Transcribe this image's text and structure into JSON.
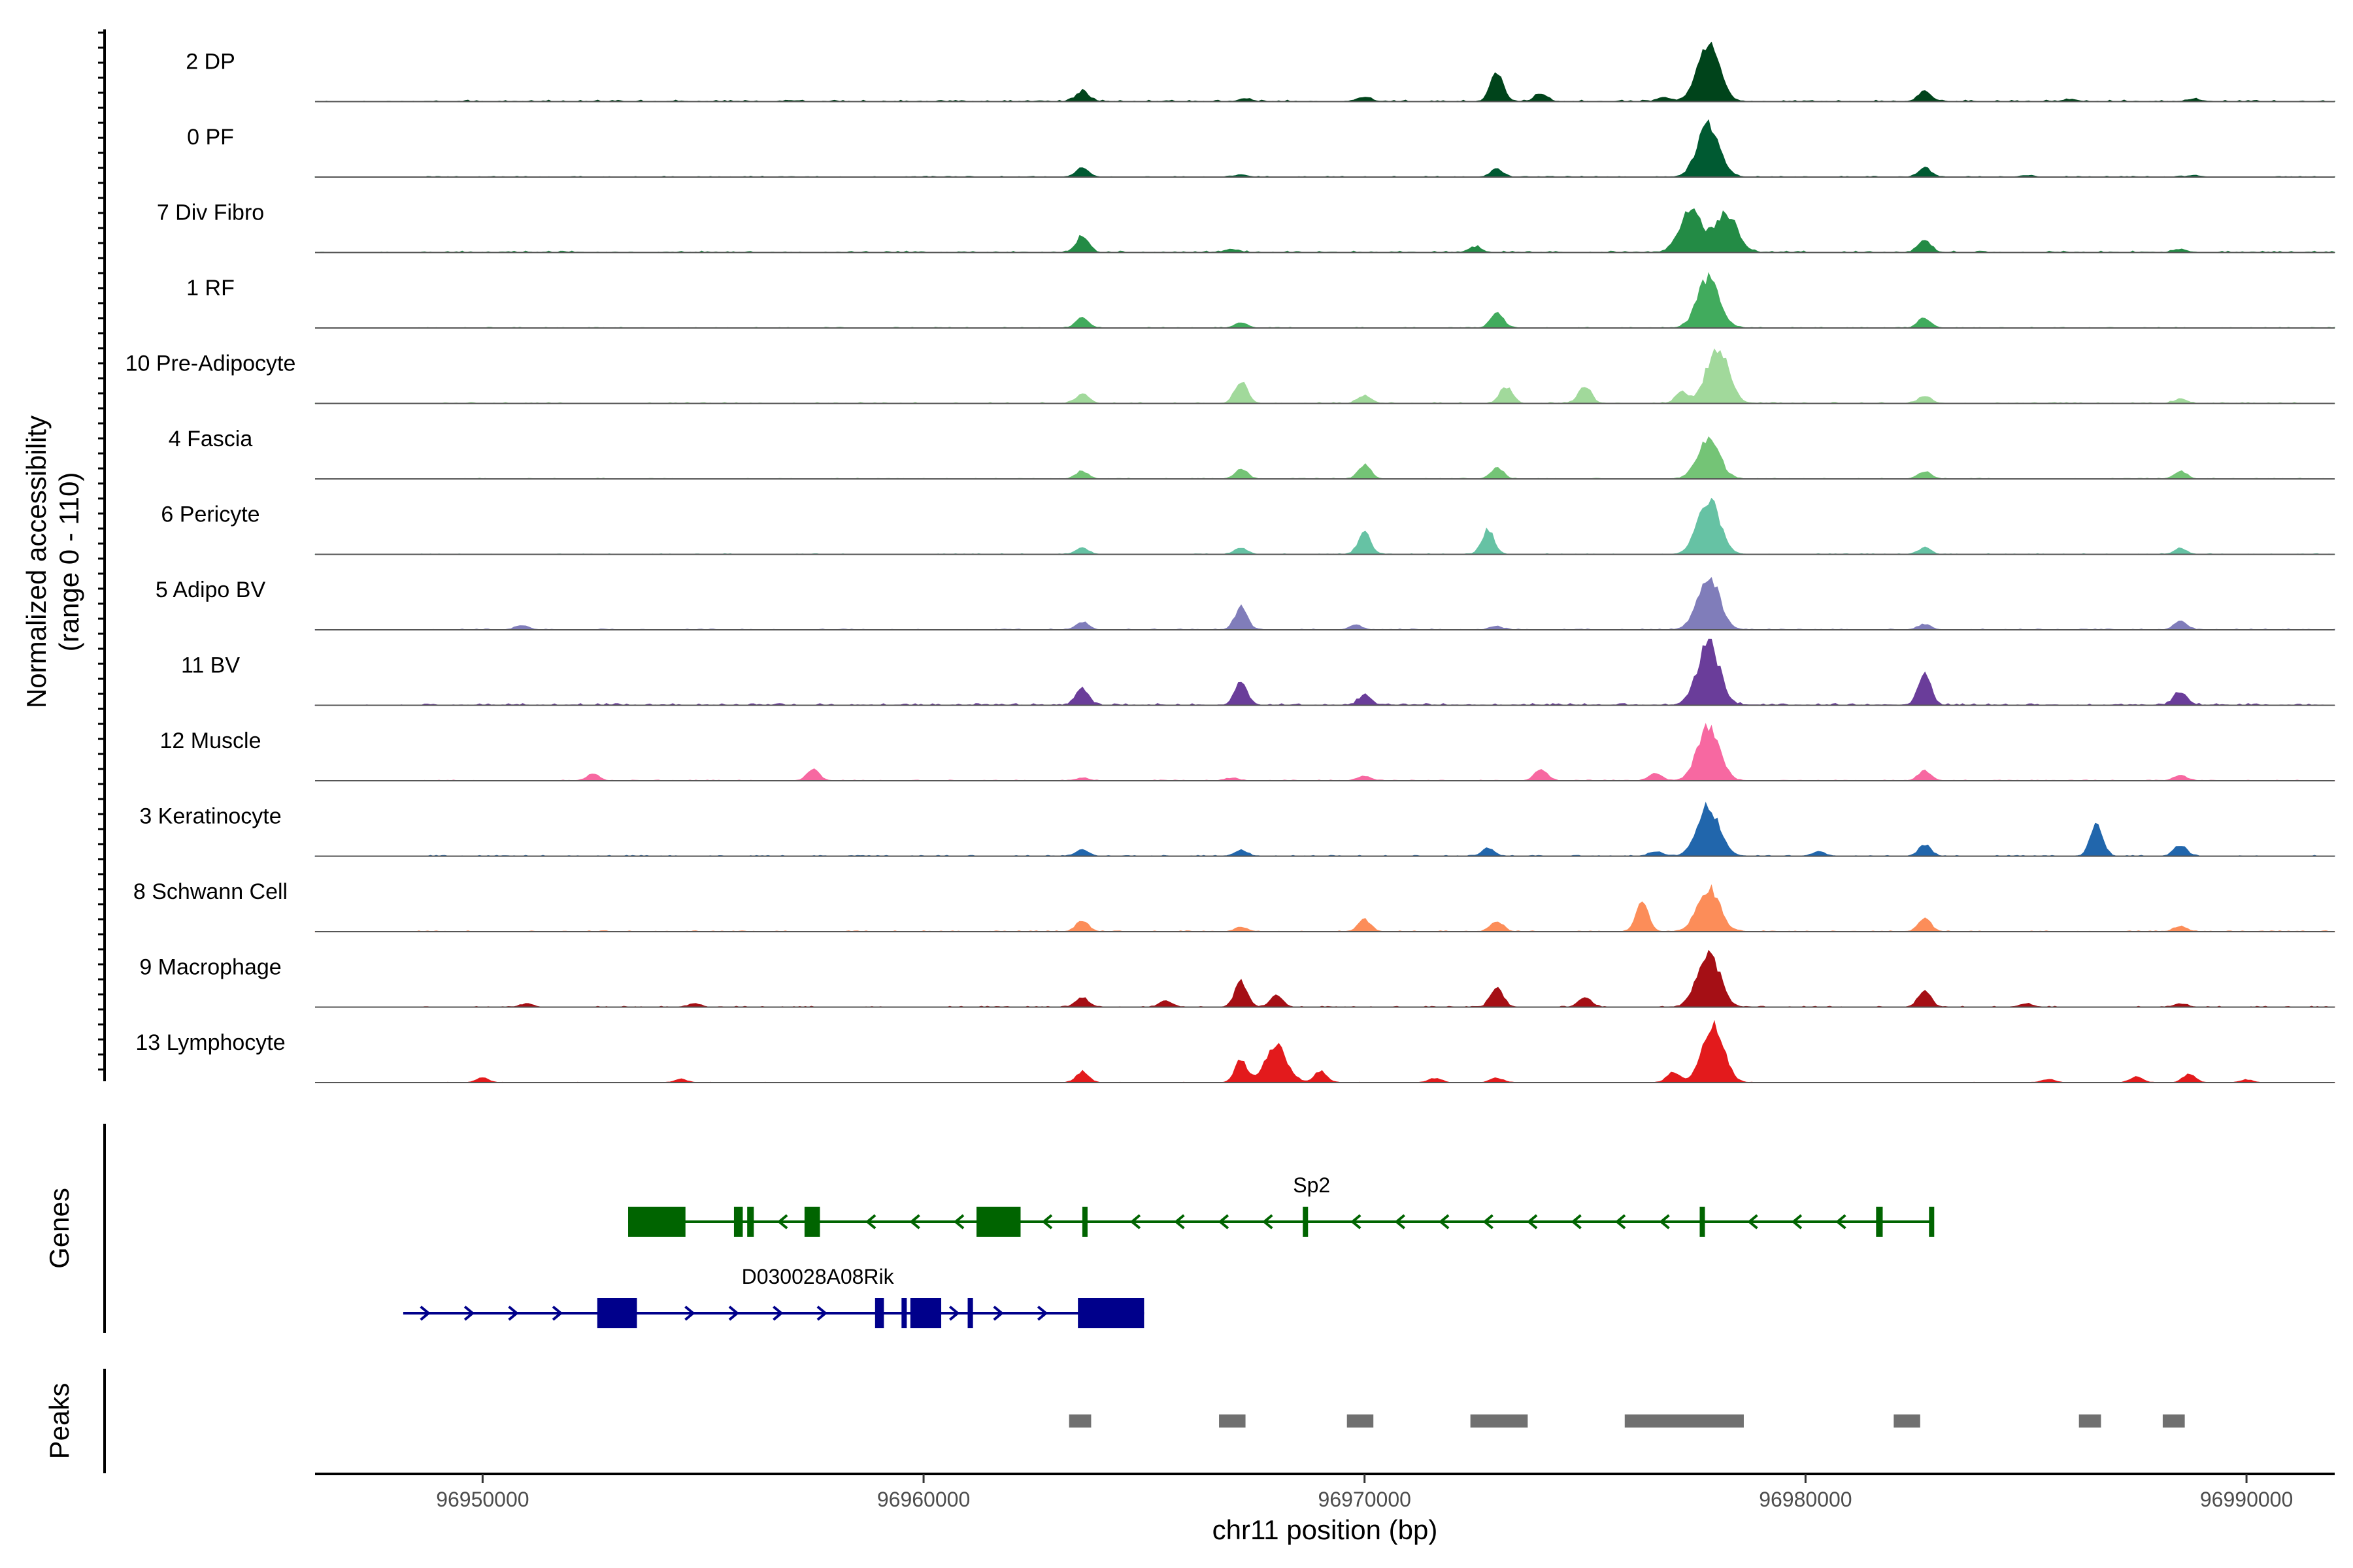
{
  "chart_data": {
    "type": "area",
    "chromosome": "chr11",
    "x_axis_label": "chr11 position (bp)",
    "y_axis_label": "Normalized accessibility\n(range 0 - 110)",
    "genes_panel_label": "Genes",
    "peaks_panel_label": "Peaks",
    "xlim": [
      96946200,
      96992000
    ],
    "x_ticks": [
      96950000,
      96960000,
      96970000,
      96980000,
      96990000
    ],
    "x_tick_labels": [
      "96950000",
      "96960000",
      "96970000",
      "96980000",
      "96990000"
    ],
    "ylim": [
      0,
      110
    ],
    "series": [
      {
        "name": "2 DP",
        "color": "#00441b",
        "background": 2.5,
        "peaks": [
          [
            96963600,
            20
          ],
          [
            96967300,
            5
          ],
          [
            96970000,
            8
          ],
          [
            96973000,
            55
          ],
          [
            96974000,
            14
          ],
          [
            96976800,
            8
          ],
          [
            96977800,
            100
          ],
          [
            96982700,
            20
          ],
          [
            96986000,
            4
          ],
          [
            96988800,
            4
          ]
        ]
      },
      {
        "name": "0 PF",
        "color": "#005a32",
        "background": 1.5,
        "peaks": [
          [
            96963600,
            18
          ],
          [
            96967200,
            4
          ],
          [
            96973000,
            14
          ],
          [
            96977800,
            95
          ],
          [
            96982700,
            17
          ],
          [
            96985000,
            3
          ],
          [
            96988800,
            3
          ]
        ]
      },
      {
        "name": "7 Div Fibro",
        "color": "#238b45",
        "background": 2.5,
        "peaks": [
          [
            96963600,
            30
          ],
          [
            96967000,
            6
          ],
          [
            96972500,
            10
          ],
          [
            96977400,
            75
          ],
          [
            96978200,
            70
          ],
          [
            96982700,
            22
          ],
          [
            96988500,
            6
          ]
        ]
      },
      {
        "name": "1 RF",
        "color": "#41ab5d",
        "background": 1.2,
        "peaks": [
          [
            96963600,
            18
          ],
          [
            96967200,
            10
          ],
          [
            96973000,
            28
          ],
          [
            96977800,
            90
          ],
          [
            96982700,
            18
          ]
        ]
      },
      {
        "name": "10 Pre-Adipocyte",
        "color": "#a1d99b",
        "background": 1.8,
        "peaks": [
          [
            96963600,
            18
          ],
          [
            96967200,
            40
          ],
          [
            96970000,
            15
          ],
          [
            96973200,
            30
          ],
          [
            96975000,
            30
          ],
          [
            96977200,
            20
          ],
          [
            96978000,
            100
          ],
          [
            96982700,
            14
          ],
          [
            96988500,
            8
          ]
        ]
      },
      {
        "name": "4 Fascia",
        "color": "#74c476",
        "background": 1.2,
        "peaks": [
          [
            96963600,
            14
          ],
          [
            96967200,
            18
          ],
          [
            96970000,
            25
          ],
          [
            96973000,
            20
          ],
          [
            96977800,
            70
          ],
          [
            96982700,
            14
          ],
          [
            96988500,
            14
          ]
        ]
      },
      {
        "name": "6 Pericyte",
        "color": "#66c2a4",
        "background": 1.2,
        "peaks": [
          [
            96963600,
            12
          ],
          [
            96967200,
            12
          ],
          [
            96970000,
            38
          ],
          [
            96972800,
            45
          ],
          [
            96977800,
            100
          ],
          [
            96982700,
            12
          ],
          [
            96988500,
            10
          ]
        ]
      },
      {
        "name": "5 Adipo BV",
        "color": "#807dba",
        "background": 1.5,
        "peaks": [
          [
            96950900,
            8
          ],
          [
            96963600,
            14
          ],
          [
            96967200,
            40
          ],
          [
            96969800,
            8
          ],
          [
            96973000,
            6
          ],
          [
            96977800,
            100
          ],
          [
            96982700,
            10
          ],
          [
            96988500,
            16
          ]
        ]
      },
      {
        "name": "11 BV",
        "color": "#6a3d9a",
        "background": 3,
        "peaks": [
          [
            96963600,
            30
          ],
          [
            96967200,
            40
          ],
          [
            96970000,
            18
          ],
          [
            96977800,
            110
          ],
          [
            96982700,
            55
          ],
          [
            96988500,
            25
          ]
        ]
      },
      {
        "name": "12 Muscle",
        "color": "#f768a1",
        "background": 1.2,
        "peaks": [
          [
            96952500,
            12
          ],
          [
            96957500,
            20
          ],
          [
            96963600,
            5
          ],
          [
            96967000,
            5
          ],
          [
            96970000,
            8
          ],
          [
            96974000,
            20
          ],
          [
            96976600,
            15
          ],
          [
            96977800,
            100
          ],
          [
            96982700,
            18
          ],
          [
            96988500,
            10
          ]
        ]
      },
      {
        "name": "3 Keratinocyte",
        "color": "#2166ac",
        "background": 1.5,
        "peaks": [
          [
            96963600,
            12
          ],
          [
            96967200,
            10
          ],
          [
            96972800,
            14
          ],
          [
            96976600,
            8
          ],
          [
            96977800,
            90
          ],
          [
            96980300,
            8
          ],
          [
            96982700,
            20
          ],
          [
            96986600,
            55
          ],
          [
            96988500,
            20
          ]
        ]
      },
      {
        "name": "8 Schwann Cell",
        "color": "#fc8d59",
        "background": 1.5,
        "peaks": [
          [
            96963600,
            20
          ],
          [
            96967200,
            8
          ],
          [
            96970000,
            22
          ],
          [
            96973000,
            20
          ],
          [
            96976300,
            50
          ],
          [
            96977800,
            80
          ],
          [
            96982700,
            25
          ],
          [
            96988500,
            10
          ]
        ]
      },
      {
        "name": "9 Macrophage",
        "color": "#a50f15",
        "background": 1.5,
        "peaks": [
          [
            96951000,
            6
          ],
          [
            96954800,
            6
          ],
          [
            96963600,
            18
          ],
          [
            96965500,
            12
          ],
          [
            96967200,
            45
          ],
          [
            96968000,
            20
          ],
          [
            96973000,
            35
          ],
          [
            96975000,
            18
          ],
          [
            96977800,
            100
          ],
          [
            96982700,
            30
          ],
          [
            96985000,
            6
          ],
          [
            96988500,
            6
          ]
        ]
      },
      {
        "name": "13 Lymphocyte",
        "color": "#e31a1c",
        "background": 0.6,
        "peaks": [
          [
            96950000,
            8
          ],
          [
            96954500,
            6
          ],
          [
            96963600,
            20
          ],
          [
            96967200,
            40
          ],
          [
            96968000,
            65
          ],
          [
            96969000,
            20
          ],
          [
            96971600,
            8
          ],
          [
            96973000,
            8
          ],
          [
            96977000,
            20
          ],
          [
            96977900,
            100
          ],
          [
            96985500,
            6
          ],
          [
            96987500,
            10
          ],
          [
            96988700,
            15
          ],
          [
            96990000,
            5
          ]
        ]
      }
    ],
    "genes": [
      {
        "name": "Sp2",
        "strand": "-",
        "color": "#006400",
        "start": 96953300,
        "end": 96982900,
        "exons": [
          [
            96953300,
            96954600
          ],
          [
            96955700,
            96955900
          ],
          [
            96956000,
            96956150
          ],
          [
            96957300,
            96957650
          ],
          [
            96961200,
            96962200
          ],
          [
            96963600,
            96963680
          ],
          [
            96968600,
            96968680
          ],
          [
            96977600,
            96977700
          ],
          [
            96981600,
            96981750
          ],
          [
            96982800,
            96982900
          ]
        ]
      },
      {
        "name": "D030028A08Rik",
        "strand": "+",
        "color": "#00008b",
        "start": 96948200,
        "end": 96965000,
        "exons": [
          [
            96952600,
            96953500
          ],
          [
            96958900,
            96959100
          ],
          [
            96959500,
            96959560
          ],
          [
            96959700,
            96960400
          ],
          [
            96961000,
            96961120
          ],
          [
            96963500,
            96965000
          ]
        ]
      }
    ],
    "peak_regions": [
      [
        96963300,
        96963800
      ],
      [
        96966700,
        96967300
      ],
      [
        96969600,
        96970200
      ],
      [
        96972400,
        96973700
      ],
      [
        96975900,
        96978600
      ],
      [
        96982000,
        96982600
      ],
      [
        96986200,
        96986700
      ],
      [
        96988100,
        96988600
      ]
    ]
  }
}
